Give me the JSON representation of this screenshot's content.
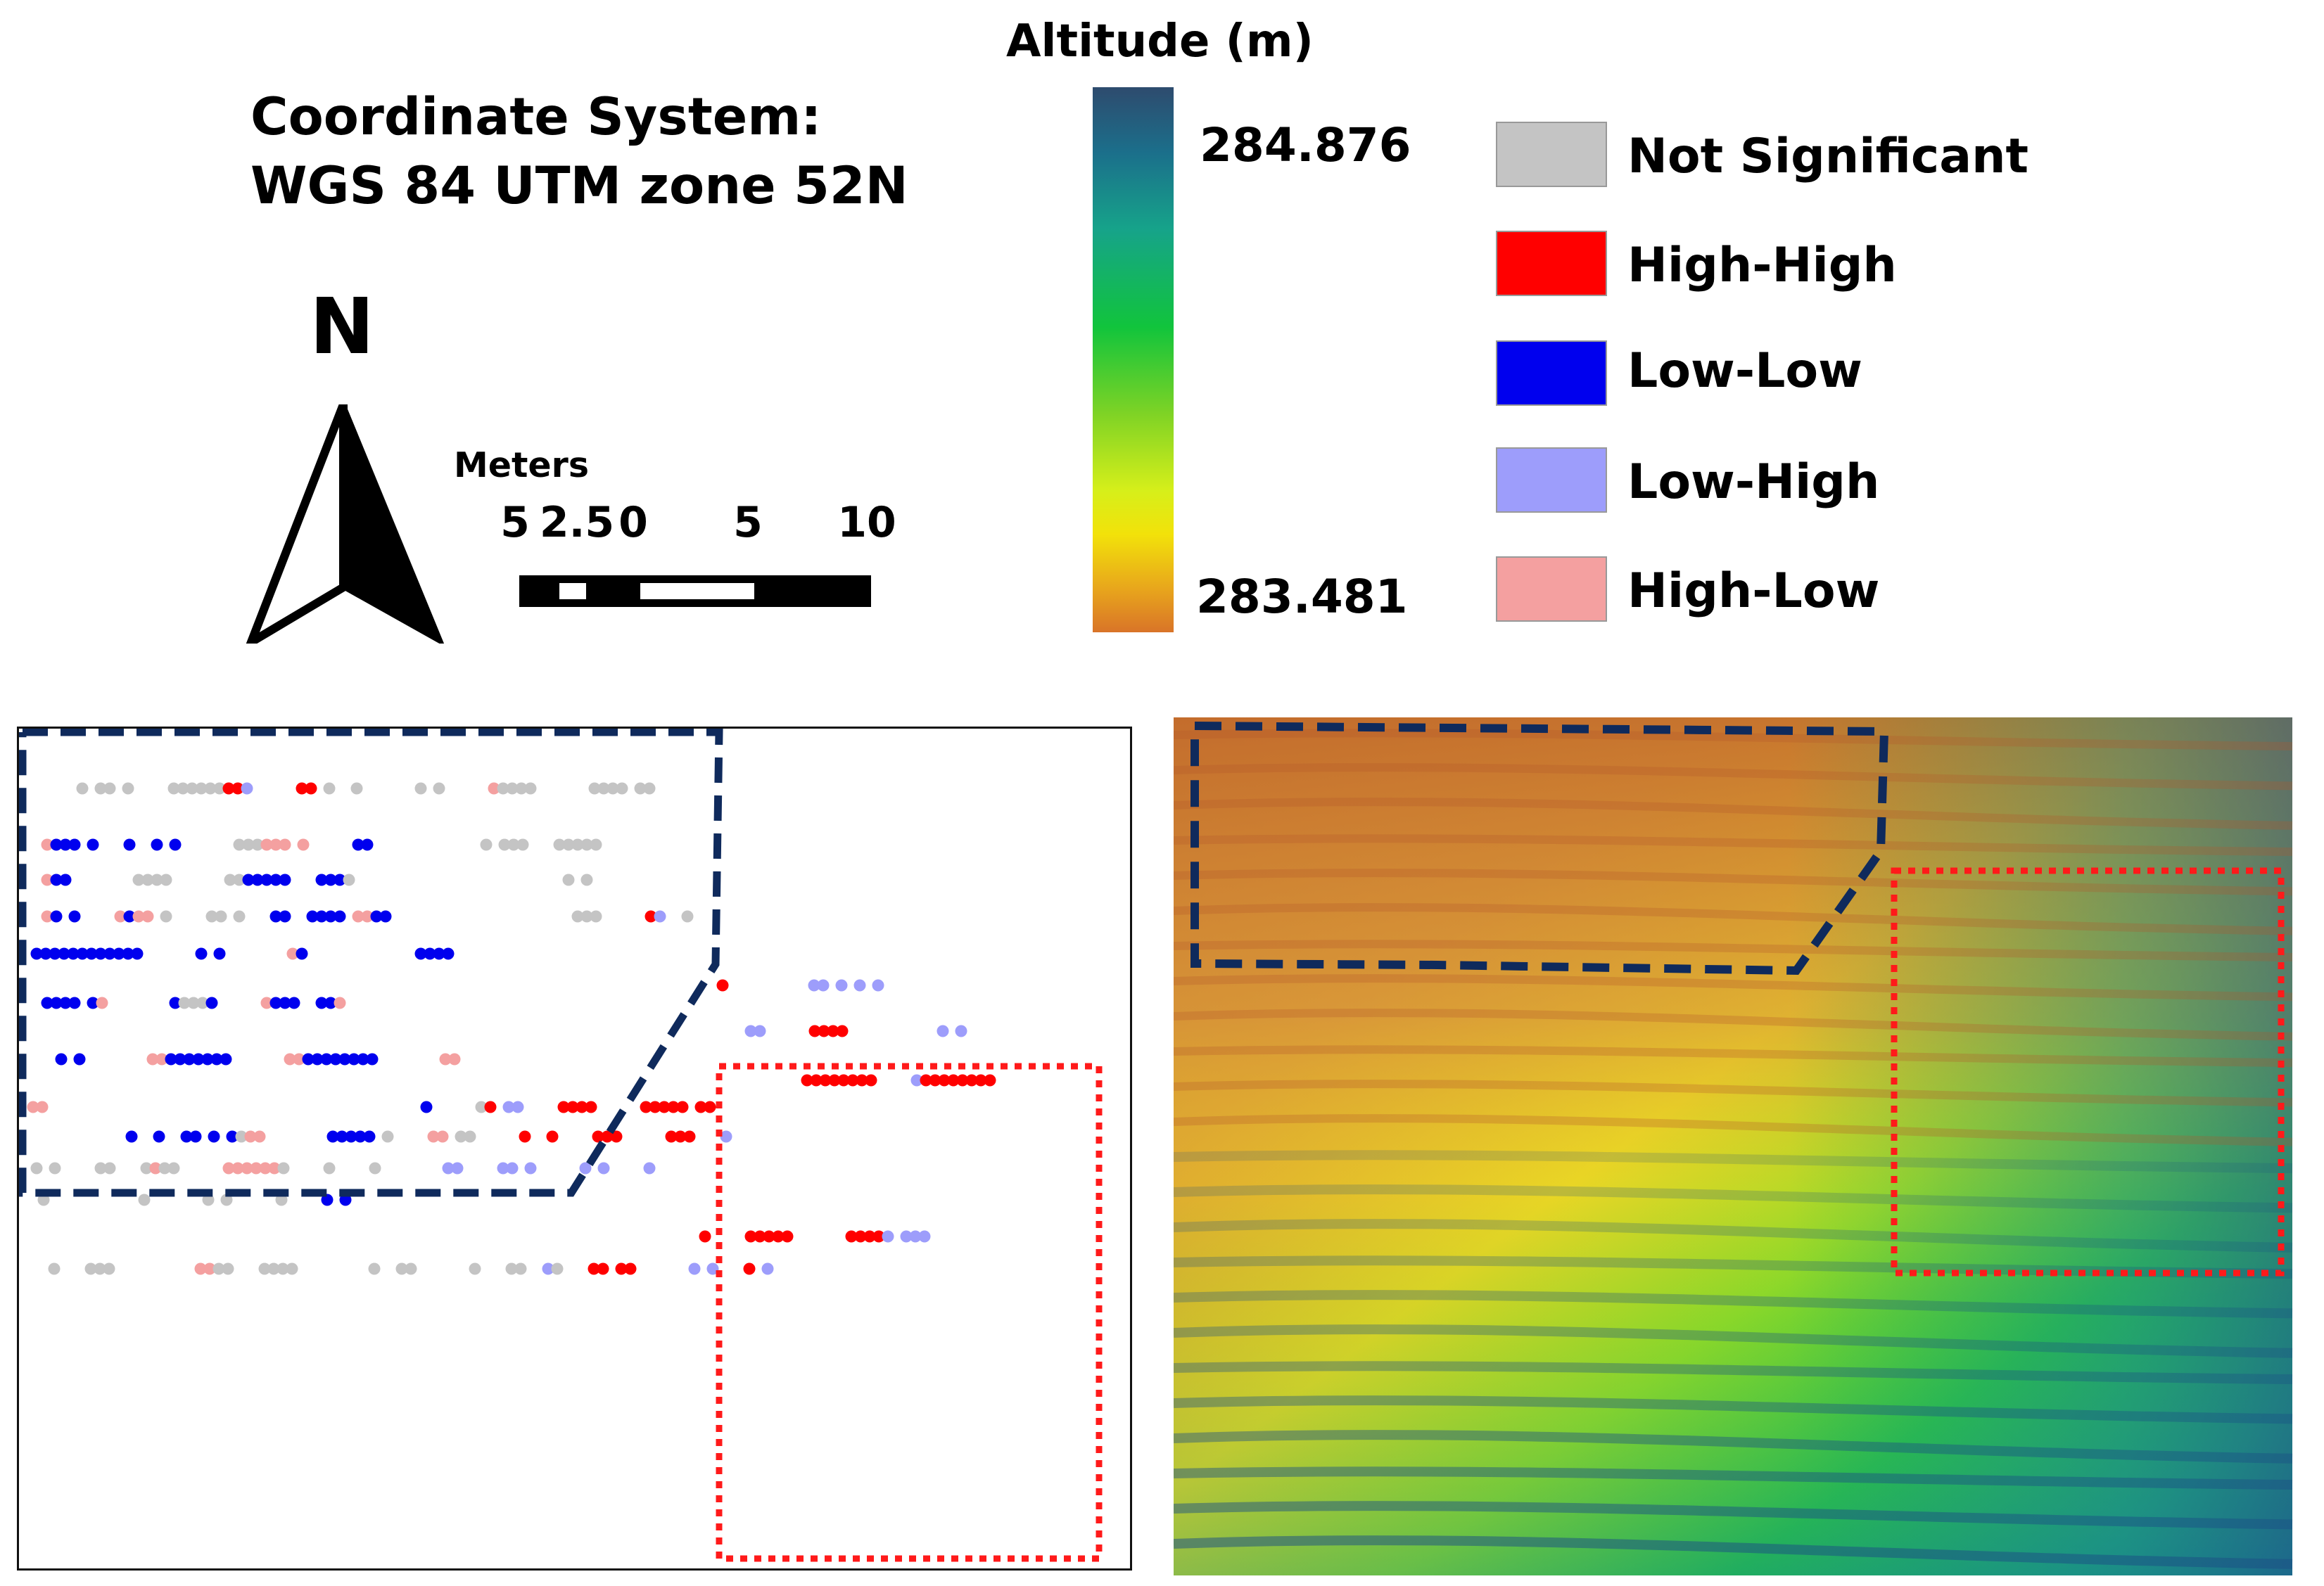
{
  "coordinate_system": {
    "line1": "Coordinate System:",
    "line2": "WGS 84 UTM zone 52N"
  },
  "north_arrow": {
    "letter": "N",
    "icon": "north-arrow-icon"
  },
  "scale_bar": {
    "unit": "Meters",
    "ticks": [
      "5",
      "2.5",
      "0",
      "5",
      "10"
    ]
  },
  "altitude_legend": {
    "title": "Altitude  (m)",
    "max": "284.876",
    "min": "283.481",
    "ramp_colors": [
      "#2e4b6e",
      "#16a38a",
      "#11c43c",
      "#d6ef1a",
      "#f2e20a",
      "#d97428"
    ]
  },
  "cluster_legend": [
    {
      "label": "Not Significant",
      "color": "#c4c4c4"
    },
    {
      "label": "High-High",
      "color": "#ff0000"
    },
    {
      "label": "Low-Low",
      "color": "#0000ee"
    },
    {
      "label": "Low-High",
      "color": "#9d9dfb"
    },
    {
      "label": "High-Low",
      "color": "#f4a0a0"
    }
  ],
  "region_colors": {
    "northwest_dashed": "#0f2a5c",
    "southeast_dotted": "#ff1a1a"
  }
}
